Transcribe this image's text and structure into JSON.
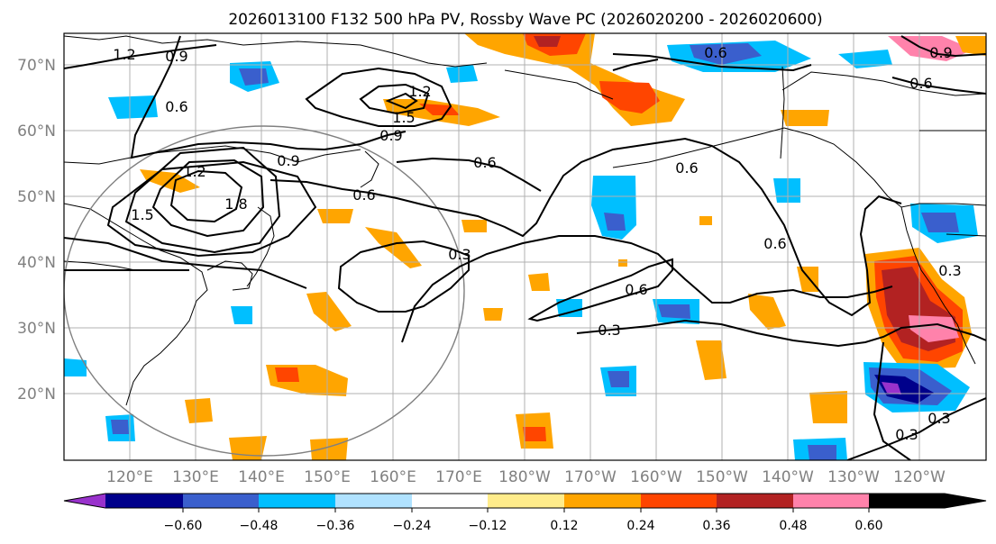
{
  "title": "2026013100 F132 500 hPa PV, Rossby Wave PC (2026020200 - 2026020600)",
  "lat_labels": [
    "70°N",
    "60°N",
    "50°N",
    "40°N",
    "30°N",
    "20°N"
  ],
  "lon_labels": [
    "120°E",
    "130°E",
    "140°E",
    "150°E",
    "160°E",
    "170°E",
    "180°W",
    "170°W",
    "160°W",
    "150°W",
    "140°W",
    "130°W",
    "120°W"
  ],
  "colorbar": {
    "ticks": [
      "−0.60",
      "−0.48",
      "−0.36",
      "−0.24",
      "−0.12",
      "0.12",
      "0.24",
      "0.36",
      "0.48",
      "0.60"
    ],
    "colors": [
      "#9932cc",
      "#00008b",
      "#3a5fcd",
      "#00bfff",
      "#b0e2ff",
      "#ffffff",
      "#ffec8b",
      "#ffa500",
      "#ff4500",
      "#b22222",
      "#ff82ab"
    ]
  },
  "contour_labels": [
    "1.2",
    "0.9",
    "0.6",
    "1.2",
    "1.5",
    "0.9",
    "0.9",
    "0.6",
    "1.2",
    "1.5",
    "1.8",
    "0.6",
    "0.3",
    "0.6",
    "0.6",
    "0.6",
    "0.6",
    "0.3",
    "0.9",
    "0.6",
    "0.3",
    "0.3",
    "0.3"
  ]
}
